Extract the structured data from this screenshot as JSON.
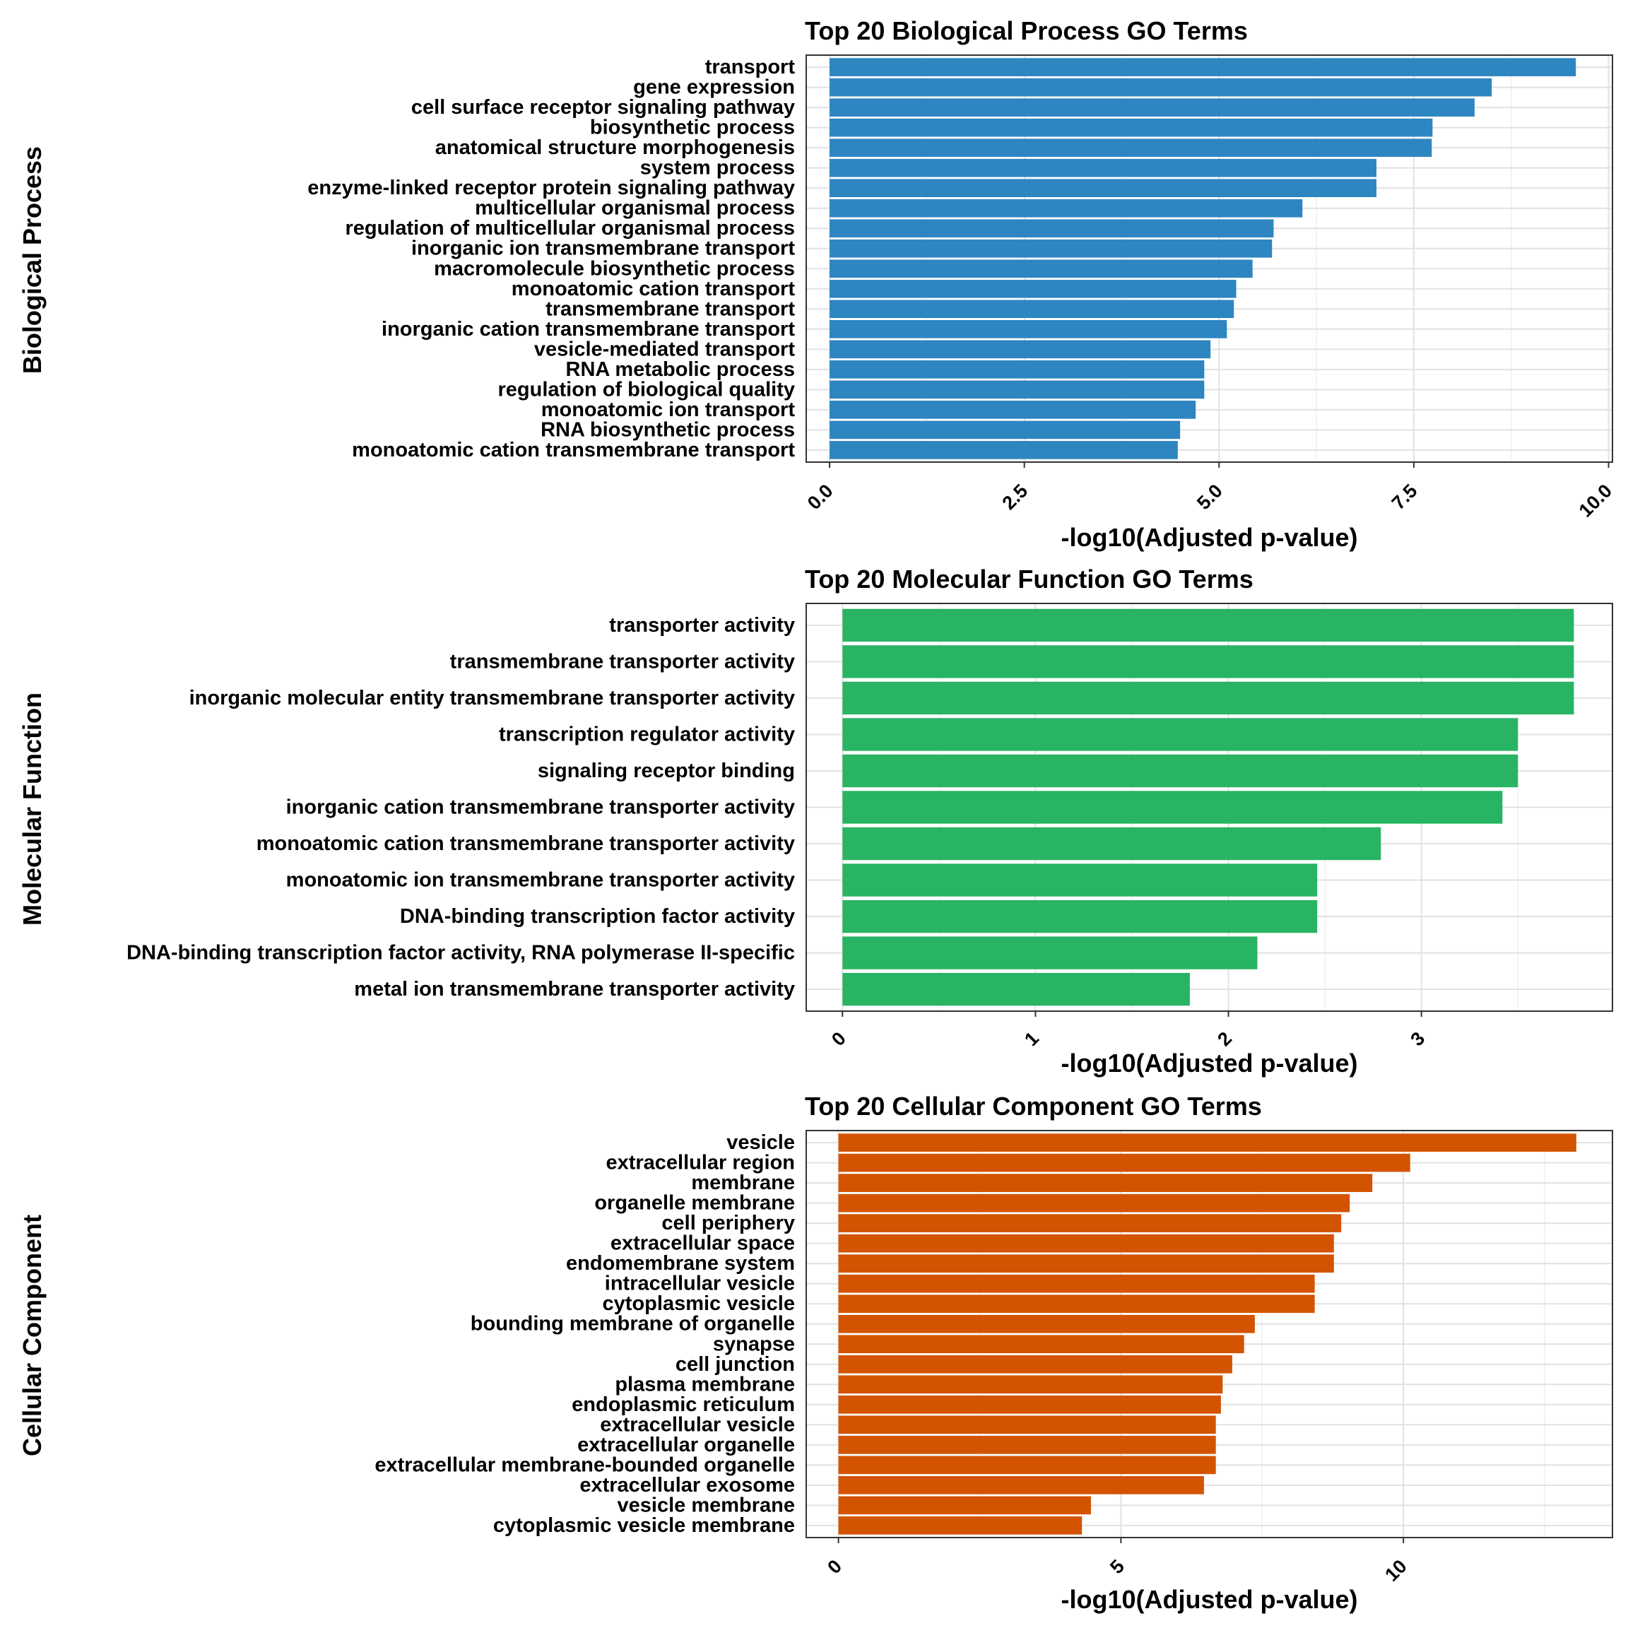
{
  "chart_data": [
    {
      "type": "bar",
      "orientation": "horizontal",
      "title": "Top 20 Biological Process GO Terms",
      "xlabel": "-log10(Adjusted p-value)",
      "ylabel": "Biological Process",
      "color": "#2e86c1",
      "xlim": [
        -0.3,
        10.05
      ],
      "xticks": [
        0,
        2.5,
        5,
        7.5,
        10
      ],
      "xtick_labels": [
        "0.0",
        "2.5",
        "5.0",
        "7.5",
        "10.0"
      ],
      "grid": true,
      "categories": [
        "transport",
        "gene expression",
        "cell surface receptor signaling pathway",
        "biosynthetic process",
        "anatomical structure morphogenesis",
        "system process",
        "enzyme-linked receptor protein signaling pathway",
        "multicellular organismal process",
        "regulation of multicellular organismal process",
        "inorganic ion transmembrane transport",
        "macromolecule biosynthetic process",
        "monoatomic cation transport",
        "transmembrane transport",
        "inorganic cation transmembrane transport",
        "vesicle-mediated transport",
        "RNA metabolic process",
        "regulation of biological quality",
        "monoatomic ion transport",
        "RNA biosynthetic process",
        "monoatomic cation transmembrane transport"
      ],
      "values": [
        9.58,
        8.5,
        8.28,
        7.74,
        7.73,
        7.02,
        7.02,
        6.07,
        5.7,
        5.68,
        5.43,
        5.22,
        5.19,
        5.1,
        4.89,
        4.81,
        4.81,
        4.7,
        4.5,
        4.47
      ]
    },
    {
      "type": "bar",
      "orientation": "horizontal",
      "title": "Top 20 Molecular Function GO Terms",
      "xlabel": "-log10(Adjusted p-value)",
      "ylabel": "Molecular Function",
      "color": "#28b463",
      "xlim": [
        -0.1879,
        3.99
      ],
      "xticks": [
        0,
        1,
        2,
        3
      ],
      "xtick_labels": [
        "0",
        "1",
        "2",
        "3"
      ],
      "grid": true,
      "categories": [
        "transporter activity",
        "transmembrane transporter activity",
        "inorganic molecular entity transmembrane transporter activity",
        "transcription regulator activity",
        "signaling receptor binding",
        "inorganic cation transmembrane transporter activity",
        "monoatomic cation transmembrane transporter activity",
        "monoatomic ion transmembrane transporter activity",
        "DNA-binding transcription factor activity",
        "DNA-binding transcription factor activity, RNA polymerase II-specific",
        "metal ion transmembrane transporter activity"
      ],
      "values": [
        3.79,
        3.79,
        3.79,
        3.5,
        3.5,
        3.42,
        2.79,
        2.46,
        2.46,
        2.15,
        1.8
      ]
    },
    {
      "type": "bar",
      "orientation": "horizontal",
      "title": "Top 20 Cellular Component GO Terms",
      "xlabel": "-log10(Adjusted p-value)",
      "ylabel": "Cellular Component",
      "color": "#d35400",
      "xlim": [
        -0.57,
        13.7
      ],
      "xticks": [
        0,
        5,
        10
      ],
      "xtick_labels": [
        "0",
        "5",
        "10"
      ],
      "grid": true,
      "categories": [
        "vesicle",
        "extracellular region",
        "membrane",
        "organelle membrane",
        "cell periphery",
        "extracellular space",
        "endomembrane system",
        "intracellular vesicle",
        "cytoplasmic vesicle",
        "bounding membrane of organelle",
        "synapse",
        "cell junction",
        "plasma membrane",
        "endoplasmic reticulum",
        "extracellular vesicle",
        "extracellular organelle",
        "extracellular membrane-bounded organelle",
        "extracellular exosome",
        "vesicle membrane",
        "cytoplasmic vesicle membrane"
      ],
      "values": [
        13.06,
        10.12,
        9.45,
        9.05,
        8.9,
        8.77,
        8.77,
        8.43,
        8.43,
        7.37,
        7.18,
        6.97,
        6.8,
        6.77,
        6.68,
        6.68,
        6.68,
        6.47,
        4.47,
        4.31
      ]
    }
  ]
}
